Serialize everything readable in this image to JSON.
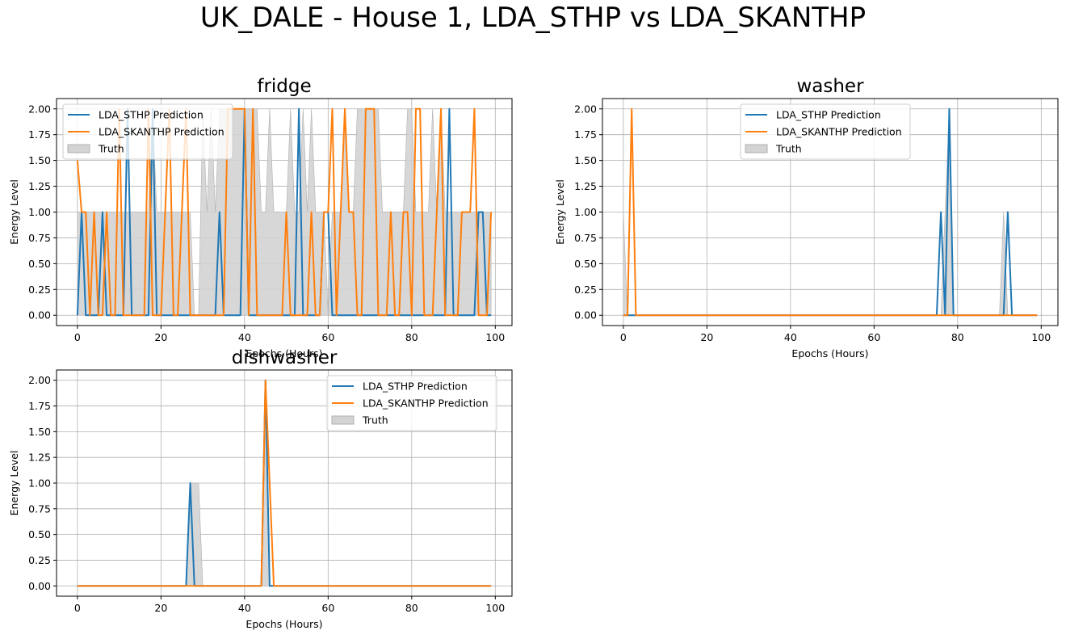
{
  "figure": {
    "suptitle": "UK_DALE - House 1, LDA_STHP vs LDA_SKANTHP"
  },
  "colors": {
    "sthp": "#1f77b4",
    "skanthp": "#ff7f0e",
    "truth_fill": "#d3d3d3",
    "truth_edge": "#b0b0b0",
    "grid": "#b0b0b0"
  },
  "chart_data": [
    {
      "type": "line",
      "title": "fridge",
      "xlabel": "Epochs (Hours)",
      "ylabel": "Energy Level",
      "xlim": [
        -5,
        104
      ],
      "ylim": [
        -0.1,
        2.1
      ],
      "xticks": [
        0,
        20,
        40,
        60,
        80,
        100
      ],
      "yticks": [
        0.0,
        0.25,
        0.5,
        0.75,
        1.0,
        1.25,
        1.5,
        1.75,
        2.0
      ],
      "grid": true,
      "legend_position": "upper left",
      "legend": [
        "LDA_STHP Prediction",
        "LDA_SKANTHP Prediction",
        "Truth"
      ],
      "x_range": [
        0,
        99
      ],
      "series": [
        {
          "name": "LDA_STHP Prediction",
          "color_key": "sthp",
          "values": [
            0,
            1,
            0,
            0,
            0,
            0,
            1,
            0,
            0,
            0,
            0,
            0,
            2,
            0,
            0,
            0,
            0,
            0,
            2,
            0,
            0,
            0,
            0,
            0,
            0,
            0,
            0,
            0,
            0,
            0,
            0,
            0,
            0,
            0,
            1,
            0,
            0,
            0,
            0,
            0,
            2,
            0,
            0,
            0,
            0,
            0,
            0,
            0,
            0,
            0,
            0,
            0,
            0,
            2,
            0,
            0,
            0,
            0,
            0,
            1,
            1,
            0,
            0,
            0,
            0,
            0,
            0,
            0,
            0,
            0,
            0,
            0,
            0,
            0,
            0,
            0,
            0,
            0,
            0,
            0,
            0,
            0,
            0,
            0,
            0,
            0,
            0,
            0,
            0,
            2,
            0,
            0,
            0,
            0,
            0,
            0,
            1,
            1,
            0,
            0
          ]
        },
        {
          "name": "LDA_SKANTHP Prediction",
          "color_key": "skanthp",
          "values": [
            1.5,
            1,
            1,
            0,
            1,
            0,
            0,
            1,
            0,
            0,
            2,
            0,
            0,
            0,
            0,
            0,
            0,
            2,
            0,
            0,
            0,
            1,
            2,
            0,
            0,
            1,
            2,
            0,
            0,
            0,
            0,
            0,
            0,
            0,
            0,
            0,
            2,
            2,
            2,
            2,
            2,
            0,
            2,
            0,
            0,
            0,
            0,
            0,
            0,
            0,
            1,
            0,
            0,
            0,
            0,
            0,
            1,
            0,
            0,
            1,
            1,
            2,
            0,
            1,
            2,
            1,
            1,
            0,
            0,
            2,
            2,
            2,
            0,
            0,
            0,
            1,
            0,
            0,
            1,
            1,
            0,
            2,
            2,
            0,
            0,
            0,
            1,
            2,
            0,
            0,
            0,
            0,
            1,
            1,
            1,
            2,
            0,
            0,
            0,
            1
          ]
        },
        {
          "name": "Truth",
          "color_key": "truth_fill",
          "kind": "fill",
          "values": [
            1,
            1,
            1,
            1,
            1,
            1,
            1,
            1,
            1,
            1,
            1,
            1,
            1,
            1,
            1,
            1,
            1,
            1,
            2,
            1,
            1,
            1,
            1,
            1,
            1,
            1,
            1,
            1,
            0,
            0,
            2,
            1,
            2,
            1,
            2,
            2,
            2,
            2,
            2,
            2,
            2,
            2,
            2,
            2,
            1,
            1,
            2,
            1,
            1,
            1,
            1,
            2,
            1,
            1,
            2,
            1,
            2,
            1,
            1,
            1,
            0,
            1,
            1,
            1,
            2,
            1,
            1,
            2,
            2,
            2,
            2,
            2,
            2,
            1,
            1,
            1,
            1,
            1,
            1,
            2,
            2,
            1,
            1,
            1,
            1,
            2,
            1,
            2,
            1,
            1,
            1,
            1,
            1,
            1,
            1,
            1,
            1,
            1,
            1,
            1
          ]
        }
      ]
    },
    {
      "type": "line",
      "title": "washer",
      "xlabel": "Epochs (Hours)",
      "ylabel": "Energy Level",
      "xlim": [
        -5,
        104
      ],
      "ylim": [
        -0.1,
        2.1
      ],
      "xticks": [
        0,
        20,
        40,
        60,
        80,
        100
      ],
      "yticks": [
        0.0,
        0.25,
        0.5,
        0.75,
        1.0,
        1.25,
        1.5,
        1.75,
        2.0
      ],
      "grid": true,
      "legend_position": "upper center",
      "legend": [
        "LDA_STHP Prediction",
        "LDA_SKANTHP Prediction",
        "Truth"
      ],
      "x_range": [
        0,
        99
      ],
      "series": [
        {
          "name": "LDA_STHP Prediction",
          "color_key": "sthp",
          "sparse": {
            "76": 1,
            "77": 0,
            "78": 2,
            "92": 1
          }
        },
        {
          "name": "LDA_SKANTHP Prediction",
          "color_key": "skanthp",
          "sparse": {
            "2": 2
          }
        },
        {
          "name": "Truth",
          "color_key": "truth_fill",
          "kind": "fill",
          "sparse": {
            "0": 1,
            "77": 1,
            "78": 2,
            "91": 1
          }
        }
      ]
    },
    {
      "type": "line",
      "title": "dishwasher",
      "xlabel": "Epochs (Hours)",
      "ylabel": "Energy Level",
      "xlim": [
        -5,
        104
      ],
      "ylim": [
        -0.1,
        2.1
      ],
      "xticks": [
        0,
        20,
        40,
        60,
        80,
        100
      ],
      "yticks": [
        0.0,
        0.25,
        0.5,
        0.75,
        1.0,
        1.25,
        1.5,
        1.75,
        2.0
      ],
      "grid": true,
      "legend_position": "upper right",
      "legend": [
        "LDA_STHP Prediction",
        "LDA_SKANTHP Prediction",
        "Truth"
      ],
      "x_range": [
        0,
        99
      ],
      "series": [
        {
          "name": "LDA_STHP Prediction",
          "color_key": "sthp",
          "sparse": {
            "27": 1,
            "45": 2
          }
        },
        {
          "name": "LDA_SKANTHP Prediction",
          "color_key": "skanthp",
          "sparse": {
            "45": 2,
            "46": 1
          }
        },
        {
          "name": "Truth",
          "color_key": "truth_fill",
          "kind": "fill",
          "sparse": {
            "27": 1,
            "28": 1,
            "29": 1,
            "45": 2
          }
        }
      ]
    }
  ]
}
